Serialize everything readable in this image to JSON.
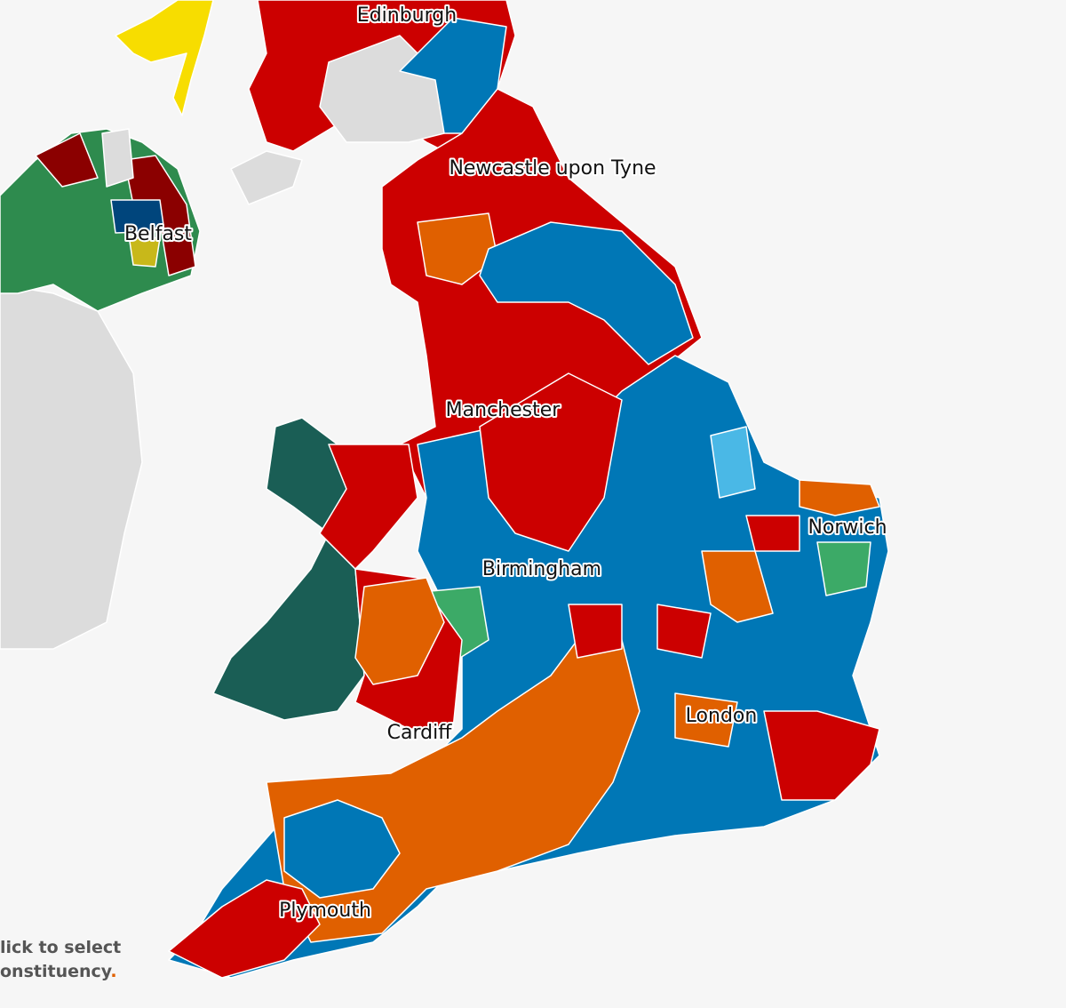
{
  "labels": {
    "edinburgh": "Edinburgh",
    "newcastle": "Newcastle upon Tyne",
    "belfast": "Belfast",
    "manchester": "Manchester",
    "birmingham": "Birmingham",
    "norwich": "Norwich",
    "cardiff": "Cardiff",
    "london": "London",
    "plymouth": "Plymouth"
  },
  "hint": {
    "line1": "lick to select",
    "line2": "onstituency",
    "period": "."
  }
}
